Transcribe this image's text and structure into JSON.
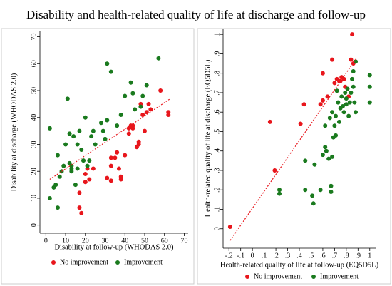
{
  "title": "Disability and health-related quality of life at discharge and follow-up",
  "chart_data": [
    {
      "type": "scatter",
      "xlabel": "Disability at follow-up (WHODAS 2.0)",
      "ylabel": "Disability at discharge (WHODAS 2.0)",
      "xlim": [
        -3,
        72
      ],
      "ylim": [
        -3,
        72
      ],
      "xticks": [
        0,
        10,
        20,
        30,
        40,
        50,
        60,
        70
      ],
      "yticks": [
        0,
        10,
        20,
        30,
        40,
        50,
        60,
        70
      ],
      "legend": "bottom",
      "series": [
        {
          "name": "No improvement",
          "color": "#e8161c",
          "x": [
            17,
            18,
            17,
            20,
            20,
            21,
            22,
            24,
            31,
            33,
            33,
            33,
            35,
            36,
            37,
            38,
            38,
            40,
            42,
            42,
            43,
            44,
            44,
            46,
            47,
            48,
            50,
            51,
            52,
            53,
            58,
            62,
            62,
            47,
            49
          ],
          "values": [
            6.5,
            4.5,
            12,
            16,
            19,
            21,
            17,
            21,
            17.5,
            16.5,
            22,
            25,
            25,
            27,
            21,
            18,
            17,
            26,
            36,
            34,
            37,
            36,
            37,
            29,
            30,
            45,
            35,
            42,
            45,
            43,
            50,
            42,
            41,
            31,
            41
          ]
        },
        {
          "name": "Improvement",
          "color": "#1a7a1e",
          "x": [
            2,
            2,
            4,
            5,
            6,
            6,
            7,
            8,
            9,
            10,
            11,
            12,
            12,
            13,
            13,
            14,
            15,
            16,
            17,
            18,
            19,
            20,
            21,
            22,
            23,
            24,
            25,
            28,
            29,
            31,
            31,
            33,
            36,
            38,
            40,
            43,
            44,
            45,
            48,
            49,
            51,
            57,
            30,
            16,
            13
          ],
          "values": [
            36,
            10,
            14,
            15,
            26,
            6.5,
            18,
            20,
            22,
            30,
            47,
            23,
            34,
            21,
            20,
            33,
            15,
            30,
            35,
            28,
            24,
            40,
            22,
            24,
            33,
            35,
            30,
            38,
            35,
            60,
            39,
            57,
            37,
            41,
            48,
            53,
            49,
            43,
            44,
            48,
            52,
            62,
            32,
            21,
            22
          ]
        }
      ],
      "trendline": {
        "color": "#e8161c",
        "x": [
          2,
          63
        ],
        "y": [
          17,
          47
        ]
      }
    },
    {
      "type": "scatter",
      "xlabel": "Health-related quality of life at follow-up (EQ5D5L)",
      "ylabel": "Health-related quality of life at discharge (EQ5D5L)",
      "xlim": [
        -0.25,
        1.05
      ],
      "ylim": [
        -0.1,
        1.03
      ],
      "xticks": [
        {
          "value": -0.2,
          "label": "-.2"
        },
        {
          "value": -0.1,
          "label": "-.1"
        },
        0,
        {
          "value": 0.1,
          "label": ".1"
        },
        {
          "value": 0.2,
          "label": ".2"
        },
        {
          "value": 0.3,
          "label": ".3"
        },
        {
          "value": 0.4,
          "label": ".4"
        },
        {
          "value": 0.5,
          "label": ".5"
        },
        {
          "value": 0.6,
          "label": ".6"
        },
        {
          "value": 0.7,
          "label": ".7"
        },
        {
          "value": 0.8,
          "label": ".8"
        },
        {
          "value": 0.9,
          "label": ".9"
        },
        1
      ],
      "yticks": [
        0,
        {
          "value": 0.1,
          "label": ".1"
        },
        {
          "value": 0.2,
          "label": ".2"
        },
        {
          "value": 0.3,
          "label": ".3"
        },
        {
          "value": 0.4,
          "label": ".4"
        },
        {
          "value": 0.5,
          "label": ".5"
        },
        {
          "value": 0.6,
          "label": ".6"
        },
        {
          "value": 0.7,
          "label": ".7"
        },
        {
          "value": 0.8,
          "label": ".8"
        },
        {
          "value": 0.9,
          "label": ".9"
        },
        1
      ],
      "legend": "bottom",
      "series": [
        {
          "name": "No improvement",
          "color": "#e8161c",
          "x": [
            -0.19,
            0.15,
            0.19,
            0.41,
            0.44,
            0.58,
            0.6,
            0.6,
            0.64,
            0.68,
            0.7,
            0.72,
            0.74,
            0.75,
            0.76,
            0.78,
            0.79,
            0.84,
            0.85,
            0.86,
            0.82
          ],
          "values": [
            0.01,
            0.55,
            0.3,
            0.54,
            0.64,
            0.64,
            0.66,
            0.8,
            0.68,
            0.87,
            0.75,
            0.77,
            0.76,
            0.76,
            0.78,
            0.77,
            0.73,
            0.87,
            1.0,
            0.85,
            0.68
          ]
        },
        {
          "name": "Improvement",
          "color": "#1a7a1e",
          "x": [
            0.23,
            0.23,
            0.45,
            0.45,
            0.51,
            0.52,
            0.53,
            0.58,
            0.6,
            0.62,
            0.63,
            0.65,
            0.66,
            0.67,
            0.67,
            0.68,
            0.68,
            0.7,
            0.71,
            0.71,
            0.72,
            0.73,
            0.74,
            0.75,
            0.76,
            0.77,
            0.78,
            0.79,
            0.8,
            0.8,
            0.81,
            0.82,
            0.83,
            0.84,
            0.85,
            0.86,
            0.86,
            0.87,
            0.88,
            0.88,
            1.0,
            1.0,
            1.0,
            0.62,
            0.69
          ],
          "values": [
            0.18,
            0.2,
            0.2,
            0.35,
            0.17,
            0.13,
            0.33,
            0.2,
            0.38,
            0.42,
            0.4,
            0.36,
            0.57,
            0.22,
            0.19,
            0.37,
            0.6,
            0.53,
            0.48,
            0.58,
            0.71,
            0.65,
            0.55,
            0.62,
            0.68,
            0.63,
            0.6,
            0.7,
            0.64,
            0.67,
            0.72,
            0.58,
            0.65,
            0.7,
            0.77,
            0.73,
            0.81,
            0.65,
            0.6,
            0.86,
            0.79,
            0.73,
            0.65,
            0.53,
            0.47
          ]
        }
      ],
      "trendline": {
        "color": "#e8161c",
        "x": [
          -0.19,
          0.89
        ],
        "y": [
          -0.06,
          0.88
        ]
      }
    }
  ]
}
